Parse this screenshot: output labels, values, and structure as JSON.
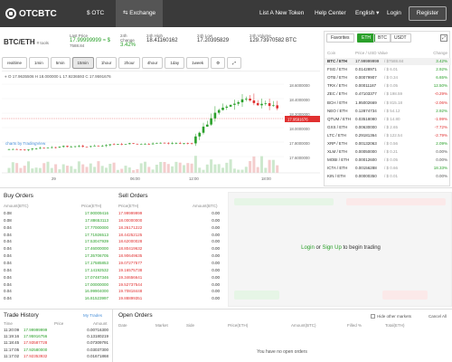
{
  "nav": {
    "logo": "OTCBTC",
    "items": [
      {
        "label": "$ OTC"
      },
      {
        "label": "Exchange"
      }
    ],
    "right": {
      "token": "List A New Token",
      "help": "Help Center",
      "lang": "English",
      "login": "Login",
      "register": "Register"
    }
  },
  "ticker": {
    "pair": "BTC/ETH",
    "pair_sub": "# tools",
    "last_price_label": "Last Price",
    "last_price": "17.99999999 ≈ $",
    "last_price_usd": "7588.84",
    "change_label": "24h Change",
    "change": "3.42%",
    "high_label": "24h High",
    "high": "18.41160162",
    "low_label": "24h Low",
    "low": "17.20395829",
    "vol_label": "24h Volume",
    "vol": "129.73970582 BTC"
  },
  "intervals": [
    "realtime",
    "1min",
    "5min",
    "15min",
    "1hour",
    "2hour",
    "4hour",
    "1day",
    "1week"
  ],
  "selected_interval": "15min",
  "chart": {
    "ohlc_text": "O 17.9635506  H 18.000000  L 17.9236593  C 17.9591676",
    "current_price": "17.9591676",
    "watermark": "charts by TradingView",
    "xticks": [
      "29",
      "06:00",
      "12:00",
      "18:00"
    ],
    "yticks": [
      "18.6000000",
      "18.4000000",
      "18.2000000",
      "18.0000000",
      "17.8000000",
      "17.6000000"
    ]
  },
  "market": {
    "tabs": [
      "Favorites",
      "ETH",
      "BTC",
      "USDT"
    ],
    "selected_tab": "ETH",
    "search_icon": "expand-icon",
    "header": {
      "coin": "Coin",
      "price": "Price / USD Value",
      "change": "Change"
    },
    "rows": [
      {
        "coin": "BTC / ETH",
        "price": "17.99999999",
        "usd": "/ $7588.84",
        "change": "3.42%",
        "dir": "up",
        "selected": true
      },
      {
        "coin": "FSG / ETH",
        "price": "0.01428971",
        "usd": "/ $ 6.01",
        "change": "2.92%",
        "dir": "up"
      },
      {
        "coin": "OTB / ETH",
        "price": "0.00079907",
        "usd": "/ $ 0.34",
        "change": "6.65%",
        "dir": "up"
      },
      {
        "coin": "TRX / ETH",
        "price": "0.00011187",
        "usd": "/ $ 0.05",
        "change": "12.50%",
        "dir": "up"
      },
      {
        "coin": "ZEC / ETH",
        "price": "0.47103377",
        "usd": "/ $ 198.59",
        "change": "-0.29%",
        "dir": "down"
      },
      {
        "coin": "BCH / ETH",
        "price": "1.95002669",
        "usd": "/ $ 815.18",
        "change": "-2.06%",
        "dir": "down"
      },
      {
        "coin": "NEO / ETH",
        "price": "0.12874734",
        "usd": "/ $ 54.12",
        "change": "2.92%",
        "dir": "up"
      },
      {
        "coin": "QTUM / ETH",
        "price": "0.03518080",
        "usd": "/ $ 14.80",
        "change": "-1.99%",
        "dir": "down"
      },
      {
        "coin": "GXS / ETH",
        "price": "0.00630000",
        "usd": "/ $ 2.65",
        "change": "-7.72%",
        "dir": "down"
      },
      {
        "coin": "LTC / ETH",
        "price": "0.29181364",
        "usd": "/ $ 122.54",
        "change": "-2.79%",
        "dir": "down"
      },
      {
        "coin": "XRP / ETH",
        "price": "0.00132063",
        "usd": "/ $ 0.56",
        "change": "2.09%",
        "dir": "up"
      },
      {
        "coin": "XLM / ETH",
        "price": "0.00050000",
        "usd": "/ $ 0.21",
        "change": "0.00%",
        "dir": "flat"
      },
      {
        "coin": "MOBI / ETH",
        "price": "0.00012600",
        "usd": "/ $ 0.05",
        "change": "0.00%",
        "dir": "flat"
      },
      {
        "coin": "ICTA / ETH",
        "price": "0.00156288",
        "usd": "/ $ 0.66",
        "change": "18.33%",
        "dir": "up"
      },
      {
        "coin": "KIN / ETH",
        "price": "0.00000350",
        "usd": "/ $ 0.01",
        "change": "0.00%",
        "dir": "flat"
      }
    ]
  },
  "buy": {
    "title": "Buy Orders",
    "h_amount": "Amount(BTC)",
    "h_price": "Price(ETH)",
    "rows": [
      [
        "0.08",
        "17.90009416"
      ],
      [
        "0.08",
        "17.88653113"
      ],
      [
        "0.04",
        "17.77000000"
      ],
      [
        "0.04",
        "17.71926513"
      ],
      [
        "0.04",
        "17.53047939"
      ],
      [
        "0.04",
        "17.46000000"
      ],
      [
        "0.04",
        "17.35706705"
      ],
      [
        "0.04",
        "17.17585853"
      ],
      [
        "0.04",
        "17.14192532"
      ],
      [
        "0.04",
        "17.07487346"
      ],
      [
        "0.04",
        "17.00000000"
      ],
      [
        "0.04",
        "16.99904000"
      ],
      [
        "0.04",
        "16.81523997"
      ]
    ]
  },
  "sell": {
    "title": "Sell Orders",
    "h_price": "Price(ETH)",
    "h_amount": "Amount(BTC)",
    "rows": [
      [
        "17.99999999",
        "0.00"
      ],
      [
        "18.00000000",
        "0.00"
      ],
      [
        "18.26171222",
        "0.00"
      ],
      [
        "18.44252125",
        "0.00"
      ],
      [
        "18.62000028",
        "0.00"
      ],
      [
        "18.80419632",
        "0.00"
      ],
      [
        "18.90649635",
        "0.00"
      ],
      [
        "19.07277577",
        "0.00"
      ],
      [
        "19.16575738",
        "0.00"
      ],
      [
        "19.34656641",
        "0.00"
      ],
      [
        "19.52737544",
        "0.00"
      ],
      [
        "19.70818448",
        "0.00"
      ],
      [
        "19.88899351",
        "0.00"
      ]
    ]
  },
  "trade_panel": {
    "login": "Login",
    "or": "or",
    "signup": "Sign Up",
    "suffix": "to begin trading"
  },
  "history": {
    "title": "Trade History",
    "my_trades": "My Trades",
    "h_time": "Time",
    "h_price": "Price",
    "h_amount": "Amount",
    "rows": [
      [
        "11:20:09",
        "17.99999999",
        "0.00716300",
        "up"
      ],
      [
        "11:19:16",
        "17.95916756",
        "0.13180219",
        "up"
      ],
      [
        "11:18:45",
        "17.93587728",
        "0.07309791",
        "down"
      ],
      [
        "11:17:05",
        "17.92580000",
        "0.03037300",
        "up"
      ],
      [
        "11:17:02",
        "17.92353932",
        "0.01671868",
        "down"
      ]
    ]
  },
  "open_orders": {
    "title": "Open Orders",
    "hide_label": "Hide other markets",
    "cancel_all": "Cancel All",
    "cols": [
      "Date",
      "Market",
      "Side",
      "Price(ETH)",
      "Amount(BTC)",
      "Filled %",
      "Total(ETH)"
    ],
    "empty": "You have no open orders"
  },
  "colors": {
    "up": "#2aa02a",
    "down": "#e03030",
    "nav": "#3a3a3a"
  }
}
